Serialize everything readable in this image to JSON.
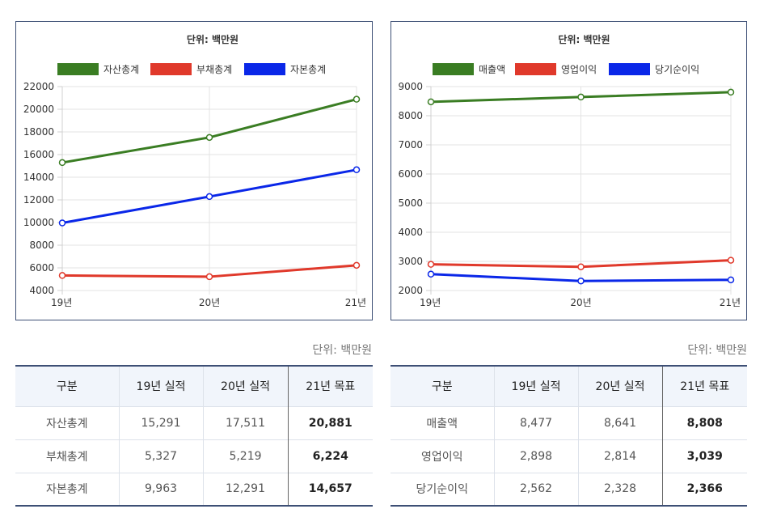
{
  "colors": {
    "green": "#3a7d23",
    "red": "#e0392b",
    "blue": "#0a27e8",
    "border": "#3d4f75"
  },
  "chart_data": [
    {
      "type": "line",
      "title": "단위: 백만원",
      "categories": [
        "19년",
        "20년",
        "21년"
      ],
      "series": [
        {
          "name": "자산총계",
          "color": "#3a7d23",
          "values": [
            15291,
            17511,
            20881
          ]
        },
        {
          "name": "부채총계",
          "color": "#e0392b",
          "values": [
            5327,
            5219,
            6224
          ]
        },
        {
          "name": "자본총계",
          "color": "#0a27e8",
          "values": [
            9963,
            12291,
            14657
          ]
        }
      ],
      "yticks": [
        4000,
        6000,
        8000,
        10000,
        12000,
        14000,
        16000,
        18000,
        20000,
        22000
      ],
      "ylim": [
        4000,
        22000
      ],
      "grid": true,
      "legend": "top"
    },
    {
      "type": "line",
      "title": "단위: 백만원",
      "categories": [
        "19년",
        "20년",
        "21년"
      ],
      "series": [
        {
          "name": "매출액",
          "color": "#3a7d23",
          "values": [
            8477,
            8641,
            8808
          ]
        },
        {
          "name": "영업이익",
          "color": "#e0392b",
          "values": [
            2898,
            2814,
            3039
          ]
        },
        {
          "name": "당기순이익",
          "color": "#0a27e8",
          "values": [
            2562,
            2328,
            2366
          ]
        }
      ],
      "yticks": [
        2000,
        3000,
        4000,
        5000,
        6000,
        7000,
        8000,
        9000
      ],
      "ylim": [
        2000,
        9000
      ],
      "grid": true,
      "legend": "top"
    }
  ],
  "tables": {
    "left": {
      "unit": "단위: 백만원",
      "headers": [
        "구분",
        "19년 실적",
        "20년 실적",
        "21년 목표"
      ],
      "rows": [
        [
          "자산총계",
          "15,291",
          "17,511",
          "20,881"
        ],
        [
          "부채총계",
          "5,327",
          "5,219",
          "6,224"
        ],
        [
          "자본총계",
          "9,963",
          "12,291",
          "14,657"
        ]
      ]
    },
    "right": {
      "unit": "단위: 백만원",
      "headers": [
        "구분",
        "19년 실적",
        "20년 실적",
        "21년 목표"
      ],
      "rows": [
        [
          "매출액",
          "8,477",
          "8,641",
          "8,808"
        ],
        [
          "영업이익",
          "2,898",
          "2,814",
          "3,039"
        ],
        [
          "당기순이익",
          "2,562",
          "2,328",
          "2,366"
        ]
      ]
    }
  }
}
